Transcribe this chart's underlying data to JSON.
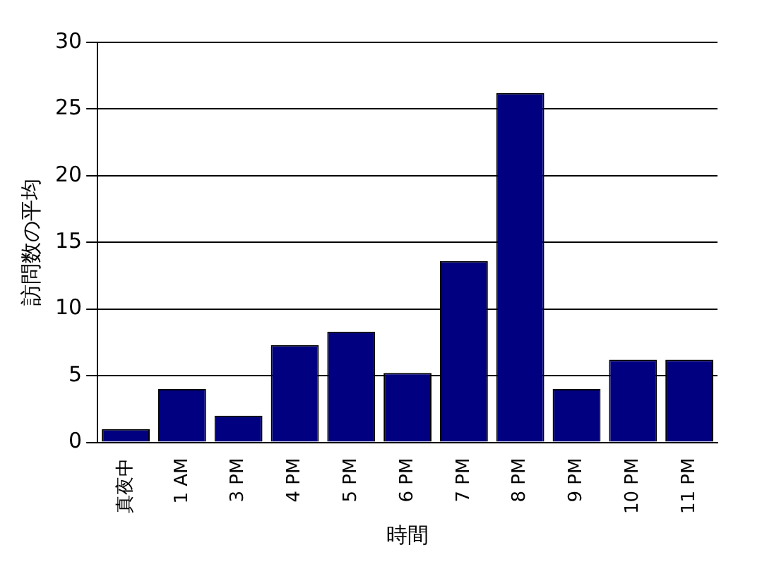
{
  "chart_data": {
    "type": "bar",
    "xlabel": "時間",
    "ylabel": "訪問数の平均",
    "categories": [
      "真夜中",
      "1 AM",
      "3 PM",
      "4 PM",
      "5 PM",
      "6 PM",
      "7 PM",
      "8 PM",
      "9 PM",
      "10 PM",
      "11 PM"
    ],
    "values": [
      1,
      4,
      2,
      7.3,
      8.3,
      5.2,
      13.6,
      26.2,
      4,
      6.2,
      6.2
    ],
    "color": "#000080",
    "ylim": [
      0,
      30
    ],
    "yticks": [
      0,
      5,
      10,
      15,
      20,
      25,
      30
    ],
    "grid": "y",
    "legend": false
  }
}
